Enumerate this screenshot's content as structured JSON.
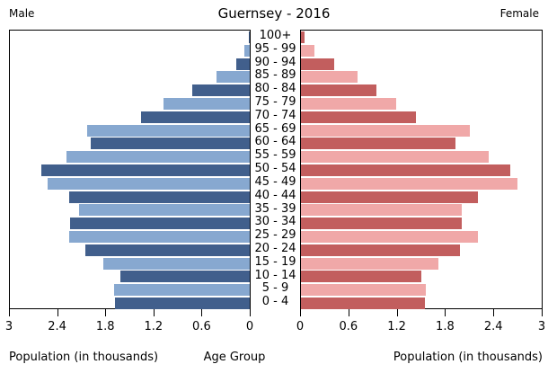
{
  "chart_data": {
    "type": "bar",
    "subtype": "population-pyramid",
    "title": "Guernsey - 2016",
    "left_header": "Male",
    "right_header": "Female",
    "categories": [
      "100+",
      "95 - 99",
      "90 - 94",
      "85 - 89",
      "80 - 84",
      "75 - 79",
      "70 - 74",
      "65 - 69",
      "60 - 64",
      "55 - 59",
      "50 - 54",
      "45 - 49",
      "40 - 44",
      "35 - 39",
      "30 - 34",
      "25 - 29",
      "20 - 24",
      "15 - 19",
      "10 - 14",
      "5 - 9",
      "0 - 4"
    ],
    "series": [
      {
        "name": "Male",
        "values": [
          0.01,
          0.07,
          0.17,
          0.42,
          0.72,
          1.08,
          1.36,
          2.03,
          1.99,
          2.29,
          2.61,
          2.53,
          2.26,
          2.13,
          2.25,
          2.26,
          2.06,
          1.83,
          1.62,
          1.7,
          1.68
        ]
      },
      {
        "name": "Female",
        "values": [
          0.05,
          0.17,
          0.41,
          0.7,
          0.94,
          1.19,
          1.43,
          2.11,
          1.93,
          2.34,
          2.61,
          2.7,
          2.2,
          2.0,
          2.0,
          2.2,
          1.98,
          1.71,
          1.5,
          1.56,
          1.54
        ]
      }
    ],
    "xlim": [
      0,
      3
    ],
    "ticks_left": [
      "3",
      "2.4",
      "1.8",
      "1.2",
      "0.6",
      "0"
    ],
    "ticks_right": [
      "0",
      "0.6",
      "1.2",
      "1.8",
      "2.4",
      "3"
    ],
    "tick_values_left": [
      3,
      2.4,
      1.8,
      1.2,
      0.6,
      0
    ],
    "tick_values_right": [
      0,
      0.6,
      1.2,
      1.8,
      2.4,
      3
    ],
    "xlabel_left": "Population (in thousands)",
    "xlabel_center": "Age Group",
    "xlabel_right": "Population (in thousands)",
    "grid": false,
    "legend_position": "none",
    "colors": {
      "male_dark": "#415f8c",
      "male_light": "#87a8d0",
      "female_dark": "#c25e5e",
      "female_light": "#f0a8a8",
      "axis": "#000000",
      "background": "#ffffff"
    }
  }
}
